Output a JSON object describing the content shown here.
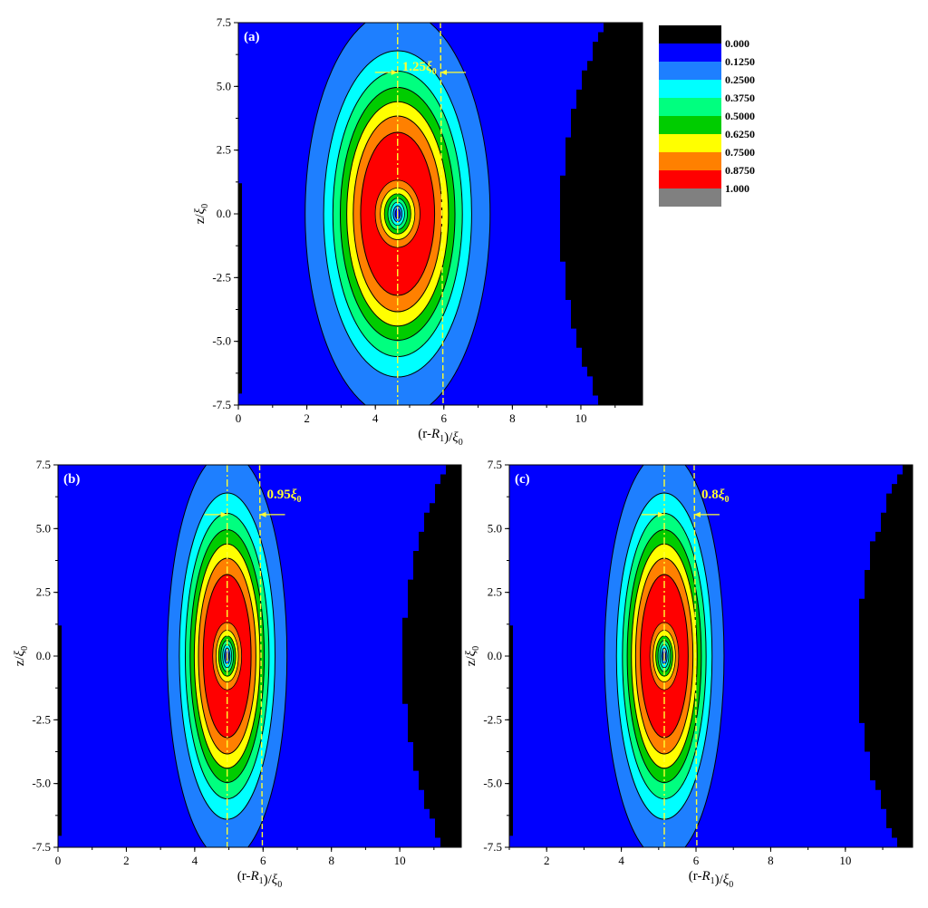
{
  "chart_data": [
    {
      "type": "heatmap",
      "panel_label": "(a)",
      "xlabel": "(r-R1)/ξ0",
      "ylabel": "z/ξ0",
      "xlim": [
        0,
        11.8
      ],
      "ylim": [
        -7.5,
        7.5
      ],
      "x_ticks": [
        "0",
        "2",
        "4",
        "6",
        "8",
        "10"
      ],
      "y_ticks": [
        "7.5",
        "5.0",
        "2.5",
        "0.0",
        "-2.5",
        "-5.0",
        "-7.5"
      ],
      "vortex_center_x": 4.65,
      "core_half_width_x": 2.7,
      "core_half_height_z": 8.0,
      "dashed_line_x": 5.9,
      "annotation": "1.25ξ0",
      "annotation_width": 1.25,
      "black_boundary_x_at_edges": 10.6,
      "black_boundary_x_at_center": 9.4
    },
    {
      "type": "heatmap",
      "panel_label": "(b)",
      "xlabel": "(r-R1)/ξ0",
      "ylabel": "z/ξ0",
      "xlim": [
        0,
        11.8
      ],
      "ylim": [
        -7.5,
        7.5
      ],
      "x_ticks": [
        "0",
        "2",
        "4",
        "6",
        "8",
        "10"
      ],
      "y_ticks": [
        "7.5",
        "5.0",
        "2.5",
        "0.0",
        "-2.5",
        "-5.0",
        "-7.5"
      ],
      "vortex_center_x": 4.95,
      "core_half_width_x": 1.75,
      "core_half_height_z": 8.0,
      "dashed_line_x": 5.9,
      "annotation": "0.95ξ0",
      "annotation_width": 0.95,
      "black_boundary_x_at_edges": 11.3,
      "black_boundary_x_at_center": 10.1
    },
    {
      "type": "heatmap",
      "panel_label": "(c)",
      "xlabel": "(r-R1)/ξ0",
      "ylabel": "z/ξ0",
      "xlim": [
        1,
        11.8
      ],
      "ylim": [
        -7.5,
        7.5
      ],
      "x_ticks": [
        "2",
        "4",
        "6",
        "8",
        "10"
      ],
      "y_ticks": [
        "7.5",
        "5.0",
        "2.5",
        "0.0",
        "-2.5",
        "-5.0",
        "-7.5"
      ],
      "vortex_center_x": 5.15,
      "core_half_width_x": 1.6,
      "core_half_height_z": 8.0,
      "dashed_line_x": 5.95,
      "annotation": "0.8ξ0",
      "annotation_width": 0.8,
      "black_boundary_x_at_edges": 11.5,
      "black_boundary_x_at_center": 10.3
    }
  ],
  "legend": {
    "levels": [
      "0.000",
      "0.1250",
      "0.2500",
      "0.3750",
      "0.5000",
      "0.6250",
      "0.7500",
      "0.8750",
      "1.000"
    ],
    "colors": [
      "#000000",
      "#0000ff",
      "#1e7fff",
      "#00ffff",
      "#00ff7f",
      "#00cc00",
      "#ffff00",
      "#ff8000",
      "#ff0000",
      "#808080"
    ]
  },
  "colors": {
    "annotation": "#ffff33",
    "contour_line": "#000000",
    "background_field": "#0000ff"
  }
}
